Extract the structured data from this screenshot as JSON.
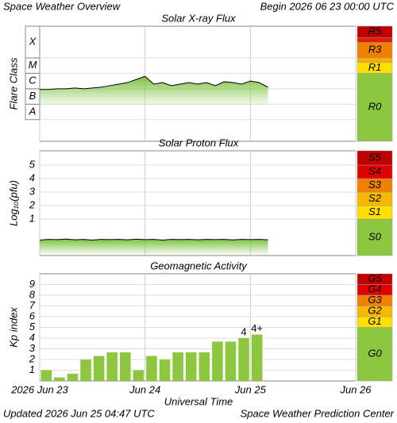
{
  "title": "Space Weather Overview",
  "begin": "Begin 2026 06 23 00:00 UTC",
  "x_label": "Universal Time",
  "updated": "Updated 2026 Jun 25 04:47 UTC",
  "credit": "Space Weather Prediction Center",
  "chart_data": [
    {
      "type": "line",
      "title": "Solar X-ray Flux",
      "ylabel": "Flare Class",
      "x": [
        0,
        2,
        4,
        6,
        8,
        10,
        12,
        14,
        16,
        18,
        20,
        22,
        24,
        26,
        28,
        30,
        32,
        34,
        36,
        38,
        40,
        42,
        44,
        46,
        48,
        50,
        52
      ],
      "values": [
        -6.05,
        -6.05,
        -6.0,
        -6.0,
        -5.95,
        -6.0,
        -5.95,
        -5.9,
        -5.8,
        -5.7,
        -5.6,
        -5.4,
        -5.2,
        -5.7,
        -5.6,
        -5.8,
        -5.7,
        -5.6,
        -5.7,
        -5.6,
        -5.8,
        -5.55,
        -5.6,
        -5.7,
        -5.5,
        -5.6,
        -5.9
      ],
      "color": "#000000",
      "fill": "#7dc242",
      "xlim": [
        0,
        72
      ],
      "ylim": [
        -9.4,
        -1.95
      ],
      "class_labels": [
        "A",
        "B",
        "C",
        "M",
        "X"
      ],
      "class_bounds": [
        -8,
        -7,
        -6,
        -5,
        -4
      ],
      "levels": [
        {
          "label": "R0",
          "color": "#8dc63f",
          "from": -9.4
        },
        {
          "label": "R1",
          "color": "#ffe000",
          "from": -5
        },
        {
          "label": null,
          "color": "#f8b000",
          "from": -4.3
        },
        {
          "label": "R3",
          "color": "#f08000",
          "from": -4
        },
        {
          "label": null,
          "color": "#e02000",
          "from": -3
        },
        {
          "label": "R5",
          "color": "#c00000",
          "from": -2.7
        }
      ]
    },
    {
      "type": "line",
      "title": "Solar Proton Flux",
      "ylabel": "Log₁₀(pfu)",
      "x": [
        0,
        2,
        4,
        6,
        8,
        10,
        12,
        14,
        16,
        18,
        20,
        22,
        24,
        26,
        28,
        30,
        32,
        34,
        36,
        38,
        40,
        42,
        44,
        46,
        48,
        50,
        52
      ],
      "values": [
        -0.55,
        -0.5,
        -0.52,
        -0.48,
        -0.53,
        -0.5,
        -0.55,
        -0.5,
        -0.52,
        -0.5,
        -0.53,
        -0.49,
        -0.52,
        -0.5,
        -0.55,
        -0.5,
        -0.52,
        -0.5,
        -0.53,
        -0.5,
        -0.52,
        -0.5,
        -0.54,
        -0.5,
        -0.52,
        -0.5,
        -0.53
      ],
      "color": "#000000",
      "fill": "#7dc242",
      "xlim": [
        0,
        72
      ],
      "ylim": [
        -1.7,
        6.06
      ],
      "yticks": [
        1,
        2,
        3,
        4,
        5
      ],
      "grid": true,
      "levels": [
        {
          "label": "S0",
          "color": "#8dc63f",
          "from": -1.7
        },
        {
          "label": "S1",
          "color": "#ffe000",
          "from": 1
        },
        {
          "label": "S2",
          "color": "#f8b800",
          "from": 2
        },
        {
          "label": "S3",
          "color": "#f08000",
          "from": 3
        },
        {
          "label": "S4",
          "color": "#e00000",
          "from": 4
        },
        {
          "label": "S5",
          "color": "#c00000",
          "from": 5
        }
      ]
    },
    {
      "type": "bar",
      "title": "Geomagnetic Activity",
      "ylabel": "Kp index",
      "x": [
        0,
        3,
        6,
        9,
        12,
        15,
        18,
        21,
        24,
        27,
        30,
        33,
        36,
        39,
        42,
        45,
        48
      ],
      "bar_width": 3,
      "values": [
        1,
        0.33,
        0.67,
        2,
        2.33,
        2.67,
        2.67,
        1,
        2.33,
        2,
        2.67,
        2.67,
        2.67,
        3.67,
        3.67,
        4,
        4.33
      ],
      "value_labels": [
        null,
        null,
        null,
        null,
        null,
        null,
        null,
        null,
        null,
        null,
        null,
        null,
        null,
        null,
        null,
        "4",
        "4+"
      ],
      "color": "#8dc63f",
      "xlim": [
        0,
        72
      ],
      "ylim": [
        0,
        10
      ],
      "yticks": [
        1,
        2,
        3,
        4,
        5,
        6,
        7,
        8,
        9
      ],
      "grid": true,
      "xticks": [
        {
          "value": 0,
          "label": "2026 Jun 23"
        },
        {
          "value": 24,
          "label": "Jun 24"
        },
        {
          "value": 48,
          "label": "Jun 25"
        },
        {
          "value": 72,
          "label": "Jun 26"
        }
      ],
      "levels": [
        {
          "label": "G0",
          "color": "#8dc63f",
          "from": 0
        },
        {
          "label": "G1",
          "color": "#ffe000",
          "from": 5
        },
        {
          "label": "G2",
          "color": "#f8b800",
          "from": 6
        },
        {
          "label": "G3",
          "color": "#f08000",
          "from": 7
        },
        {
          "label": "G4",
          "color": "#e00000",
          "from": 8
        },
        {
          "label": "G5",
          "color": "#c00000",
          "from": 9
        }
      ]
    }
  ]
}
